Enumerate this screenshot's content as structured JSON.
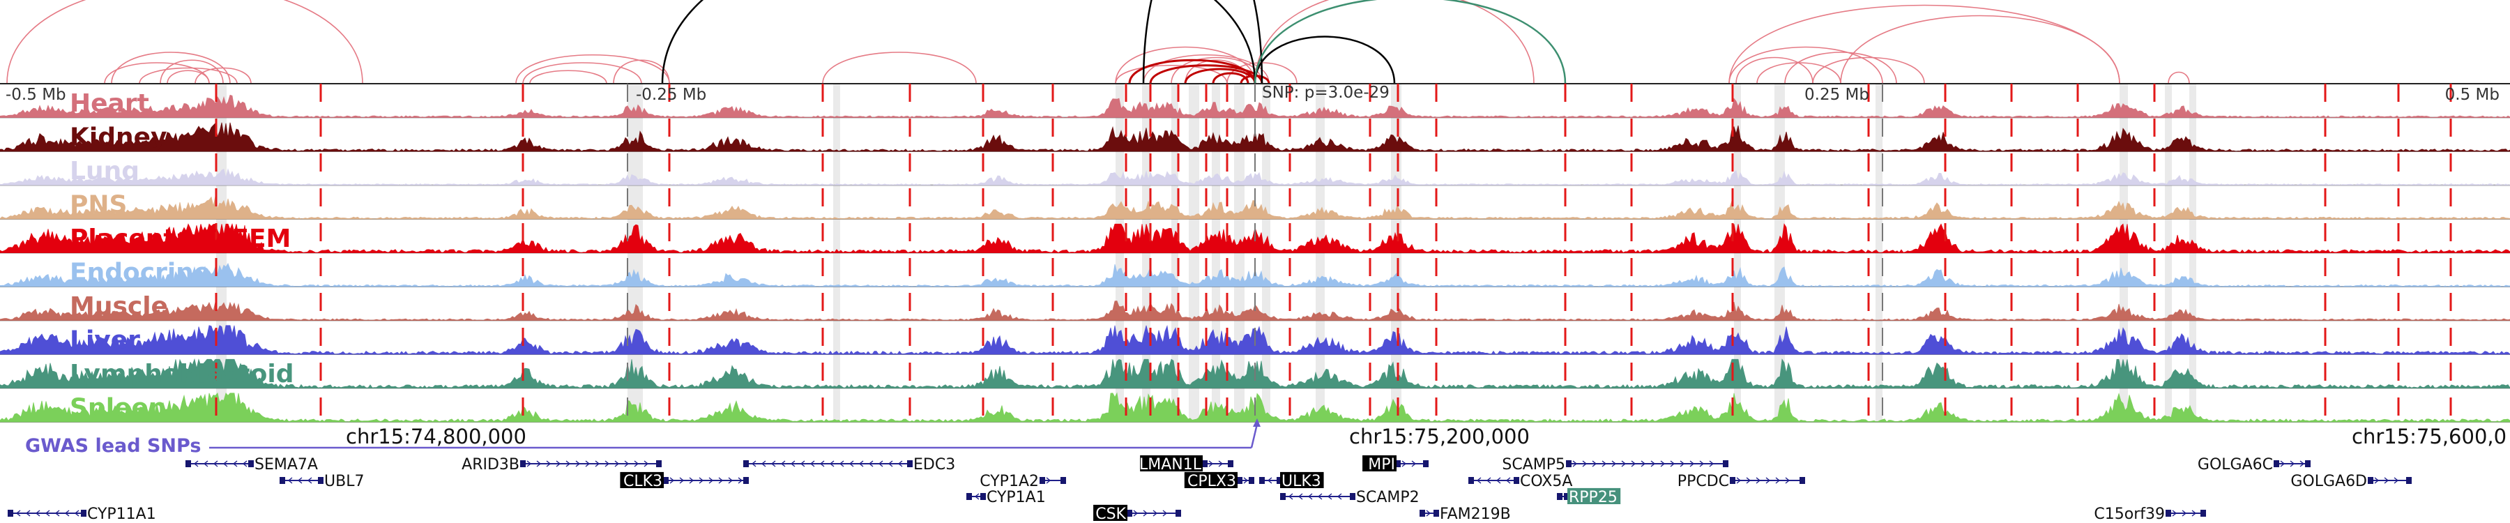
{
  "chart_data": {
    "type": "genome-browser",
    "chromosome": "chr15",
    "coord_labels": [
      "chr15:74,800,000",
      "chr15:75,200,000",
      "chr15:75,600,0"
    ],
    "offset_labels": [
      "-0.5 Mb",
      "-0.25 Mb",
      "0.25 Mb",
      "0.5 Mb"
    ],
    "snp_label": "SNP: p=3.0e-29",
    "gwas_label": "GWAS lead SNPs",
    "tracks": [
      {
        "name": "Heart",
        "color": "#d4707b"
      },
      {
        "name": "Kidney",
        "color": "#6b0d0d"
      },
      {
        "name": "Lung",
        "color": "#d6d3ec"
      },
      {
        "name": "PNS",
        "color": "#deb189"
      },
      {
        "name": "Placenta & EEM",
        "color": "#e3000e"
      },
      {
        "name": "Endocrine",
        "color": "#9ac1ee"
      },
      {
        "name": "Muscle",
        "color": "#c56a5e"
      },
      {
        "name": "Liver",
        "color": "#4f4fd6"
      },
      {
        "name": "Lymphoblastoid",
        "color": "#48957d"
      },
      {
        "name": "Spleen",
        "color": "#7bd05a"
      }
    ],
    "genes": [
      {
        "name": "SEMA7A",
        "row": 0,
        "strand": "-",
        "start": 270,
        "end": 360,
        "label_x": 365,
        "label_side": "right",
        "boxed": false
      },
      {
        "name": "UBL7",
        "row": 1,
        "strand": "-",
        "start": 405,
        "end": 460,
        "label_x": 465,
        "label_side": "right",
        "boxed": false
      },
      {
        "name": "CYP11A1",
        "row": 3,
        "strand": "-",
        "start": 15,
        "end": 120,
        "label_x": 125,
        "label_side": "right",
        "boxed": false
      },
      {
        "name": "ARID3B",
        "row": 0,
        "strand": "+",
        "start": 750,
        "end": 945,
        "label_x": 745,
        "label_side": "left",
        "boxed": false
      },
      {
        "name": "CLK3",
        "row": 1,
        "strand": "+",
        "start": 955,
        "end": 1070,
        "label_x": 950,
        "label_side": "left",
        "boxed": true,
        "box_color": "#000000"
      },
      {
        "name": "EDC3",
        "row": 0,
        "strand": "-",
        "start": 1070,
        "end": 1305,
        "label_x": 1310,
        "label_side": "right",
        "boxed": false
      },
      {
        "name": "CYP1A2",
        "row": 1,
        "strand": "+",
        "start": 1495,
        "end": 1525,
        "label_x": 1490,
        "label_side": "left",
        "boxed": false
      },
      {
        "name": "CYP1A1",
        "row": 2,
        "strand": "-",
        "start": 1390,
        "end": 1410,
        "label_x": 1415,
        "label_side": "right",
        "boxed": false
      },
      {
        "name": "CSK",
        "row": 3,
        "strand": "+",
        "start": 1620,
        "end": 1690,
        "label_x": 1615,
        "label_side": "left",
        "boxed": true,
        "box_color": "#000000"
      },
      {
        "name": "LMAN1L",
        "row": 0,
        "strand": "+",
        "start": 1728,
        "end": 1765,
        "label_x": 1723,
        "label_side": "left",
        "boxed": true,
        "box_color": "#000000"
      },
      {
        "name": "CPLX3",
        "row": 1,
        "strand": "+",
        "start": 1778,
        "end": 1795,
        "label_x": 1773,
        "label_side": "left",
        "boxed": true,
        "box_color": "#000000"
      },
      {
        "name": "ULK3",
        "row": 1,
        "strand": "-",
        "start": 1810,
        "end": 1835,
        "label_x": 1838,
        "label_side": "right",
        "boxed": true,
        "box_color": "#000000"
      },
      {
        "name": "MPI",
        "row": 0,
        "strand": "+",
        "start": 2005,
        "end": 2045,
        "label_x": 2001,
        "label_side": "left",
        "boxed": true,
        "box_color": "#000000"
      },
      {
        "name": "SCAMP2",
        "row": 2,
        "strand": "-",
        "start": 1840,
        "end": 1940,
        "label_x": 1945,
        "label_side": "right",
        "boxed": false
      },
      {
        "name": "FAM219B",
        "row": 3,
        "strand": "+",
        "start": 2040,
        "end": 2060,
        "label_x": 2065,
        "label_side": "right",
        "boxed": false
      },
      {
        "name": "SCAMP5",
        "row": 0,
        "strand": "+",
        "start": 2250,
        "end": 2475,
        "label_x": 2245,
        "label_side": "left",
        "boxed": false
      },
      {
        "name": "COX5A",
        "row": 1,
        "strand": "-",
        "start": 2110,
        "end": 2175,
        "label_x": 2180,
        "label_side": "right",
        "boxed": false
      },
      {
        "name": "RPP25",
        "row": 2,
        "strand": "-",
        "start": 2237,
        "end": 2247,
        "label_x": 2250,
        "label_side": "right",
        "boxed": true,
        "box_color": "#46917c"
      },
      {
        "name": "PPCDC",
        "row": 1,
        "strand": "+",
        "start": 2485,
        "end": 2585,
        "label_x": 2480,
        "label_side": "left",
        "boxed": false
      },
      {
        "name": "GOLGA6C",
        "row": 0,
        "strand": "+",
        "start": 3265,
        "end": 3310,
        "label_x": 3260,
        "label_side": "left",
        "boxed": false
      },
      {
        "name": "GOLGA6D",
        "row": 1,
        "strand": "+",
        "start": 3400,
        "end": 3455,
        "label_x": 3395,
        "label_side": "left",
        "boxed": false
      },
      {
        "name": "C15orf39",
        "row": 3,
        "strand": "+",
        "start": 3110,
        "end": 3160,
        "label_x": 3105,
        "label_side": "left",
        "boxed": false
      }
    ],
    "grid": true,
    "legend": "left"
  }
}
